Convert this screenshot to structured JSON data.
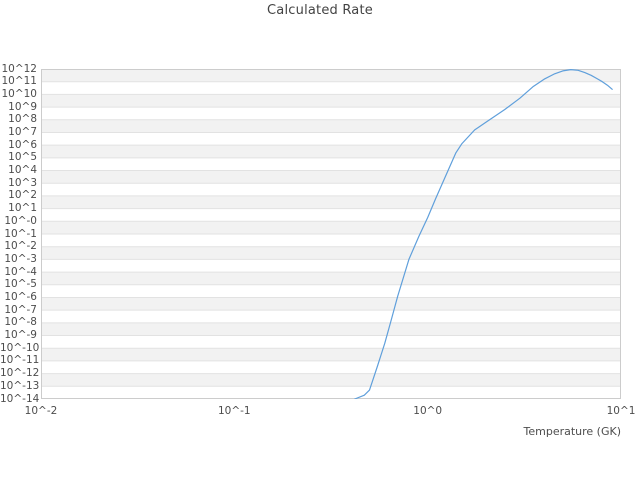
{
  "chart_data": {
    "type": "line",
    "title": "Calculated Rate",
    "xlabel": "Temperature (GK)",
    "ylabel": "",
    "x_scale": "log10",
    "y_scale": "log10",
    "xlim_log10": [
      -2,
      1
    ],
    "ylim_log10": [
      -14,
      12
    ],
    "grid": "horizontal-decade-bands",
    "legend": "none",
    "x_ticks": [
      {
        "label": "10^-2",
        "log10": -2
      },
      {
        "label": "10^-1",
        "log10": -1
      },
      {
        "label": "10^0",
        "log10": 0
      },
      {
        "label": "10^1",
        "log10": 1
      }
    ],
    "y_ticks": [
      {
        "label": "10^12",
        "log10": 12
      },
      {
        "label": "10^11",
        "log10": 11
      },
      {
        "label": "10^10",
        "log10": 10
      },
      {
        "label": "10^9",
        "log10": 9
      },
      {
        "label": "10^8",
        "log10": 8
      },
      {
        "label": "10^7",
        "log10": 7
      },
      {
        "label": "10^6",
        "log10": 6
      },
      {
        "label": "10^5",
        "log10": 5
      },
      {
        "label": "10^4",
        "log10": 4
      },
      {
        "label": "10^3",
        "log10": 3
      },
      {
        "label": "10^2",
        "log10": 2
      },
      {
        "label": "10^1",
        "log10": 1
      },
      {
        "label": "10^-0",
        "log10": 0
      },
      {
        "label": "10^-1",
        "log10": -1
      },
      {
        "label": "10^-2",
        "log10": -2
      },
      {
        "label": "10^-3",
        "log10": -3
      },
      {
        "label": "10^-4",
        "log10": -4
      },
      {
        "label": "10^-5",
        "log10": -5
      },
      {
        "label": "10^-6",
        "log10": -6
      },
      {
        "label": "10^-7",
        "log10": -7
      },
      {
        "label": "10^-8",
        "log10": -8
      },
      {
        "label": "10^-9",
        "log10": -9
      },
      {
        "label": "10^-10",
        "log10": -10
      },
      {
        "label": "10^-11",
        "log10": -11
      },
      {
        "label": "10^-12",
        "log10": -12
      },
      {
        "label": "10^-13",
        "log10": -13
      },
      {
        "label": "10^-14",
        "log10": -14
      }
    ],
    "series": [
      {
        "name": "Calculated Rate",
        "color": "#5f9fdb",
        "points_T_GK_log10rate": [
          [
            0.42,
            -14.0
          ],
          [
            0.47,
            -13.7
          ],
          [
            0.5,
            -13.3
          ],
          [
            0.55,
            -11.4
          ],
          [
            0.6,
            -9.6
          ],
          [
            0.65,
            -7.7
          ],
          [
            0.7,
            -5.9
          ],
          [
            0.75,
            -4.4
          ],
          [
            0.8,
            -3.0
          ],
          [
            0.9,
            -1.2
          ],
          [
            1.0,
            0.3
          ],
          [
            1.1,
            1.8
          ],
          [
            1.25,
            3.7
          ],
          [
            1.4,
            5.4
          ],
          [
            1.5,
            6.1
          ],
          [
            1.75,
            7.2
          ],
          [
            2.0,
            7.8
          ],
          [
            2.5,
            8.8
          ],
          [
            3.0,
            9.7
          ],
          [
            3.5,
            10.6
          ],
          [
            4.0,
            11.2
          ],
          [
            4.5,
            11.6
          ],
          [
            5.0,
            11.85
          ],
          [
            5.5,
            11.95
          ],
          [
            6.0,
            11.9
          ],
          [
            6.5,
            11.72
          ],
          [
            7.0,
            11.5
          ],
          [
            7.5,
            11.25
          ],
          [
            8.0,
            11.0
          ],
          [
            8.5,
            10.72
          ],
          [
            9.0,
            10.4
          ]
        ]
      }
    ],
    "colors": {
      "band": "#f2f2f2",
      "band_alt": "#ffffff",
      "gridline": "#e2e2e2",
      "border": "#cccccc",
      "text": "#4d4d4d",
      "background": "#ffffff"
    }
  }
}
